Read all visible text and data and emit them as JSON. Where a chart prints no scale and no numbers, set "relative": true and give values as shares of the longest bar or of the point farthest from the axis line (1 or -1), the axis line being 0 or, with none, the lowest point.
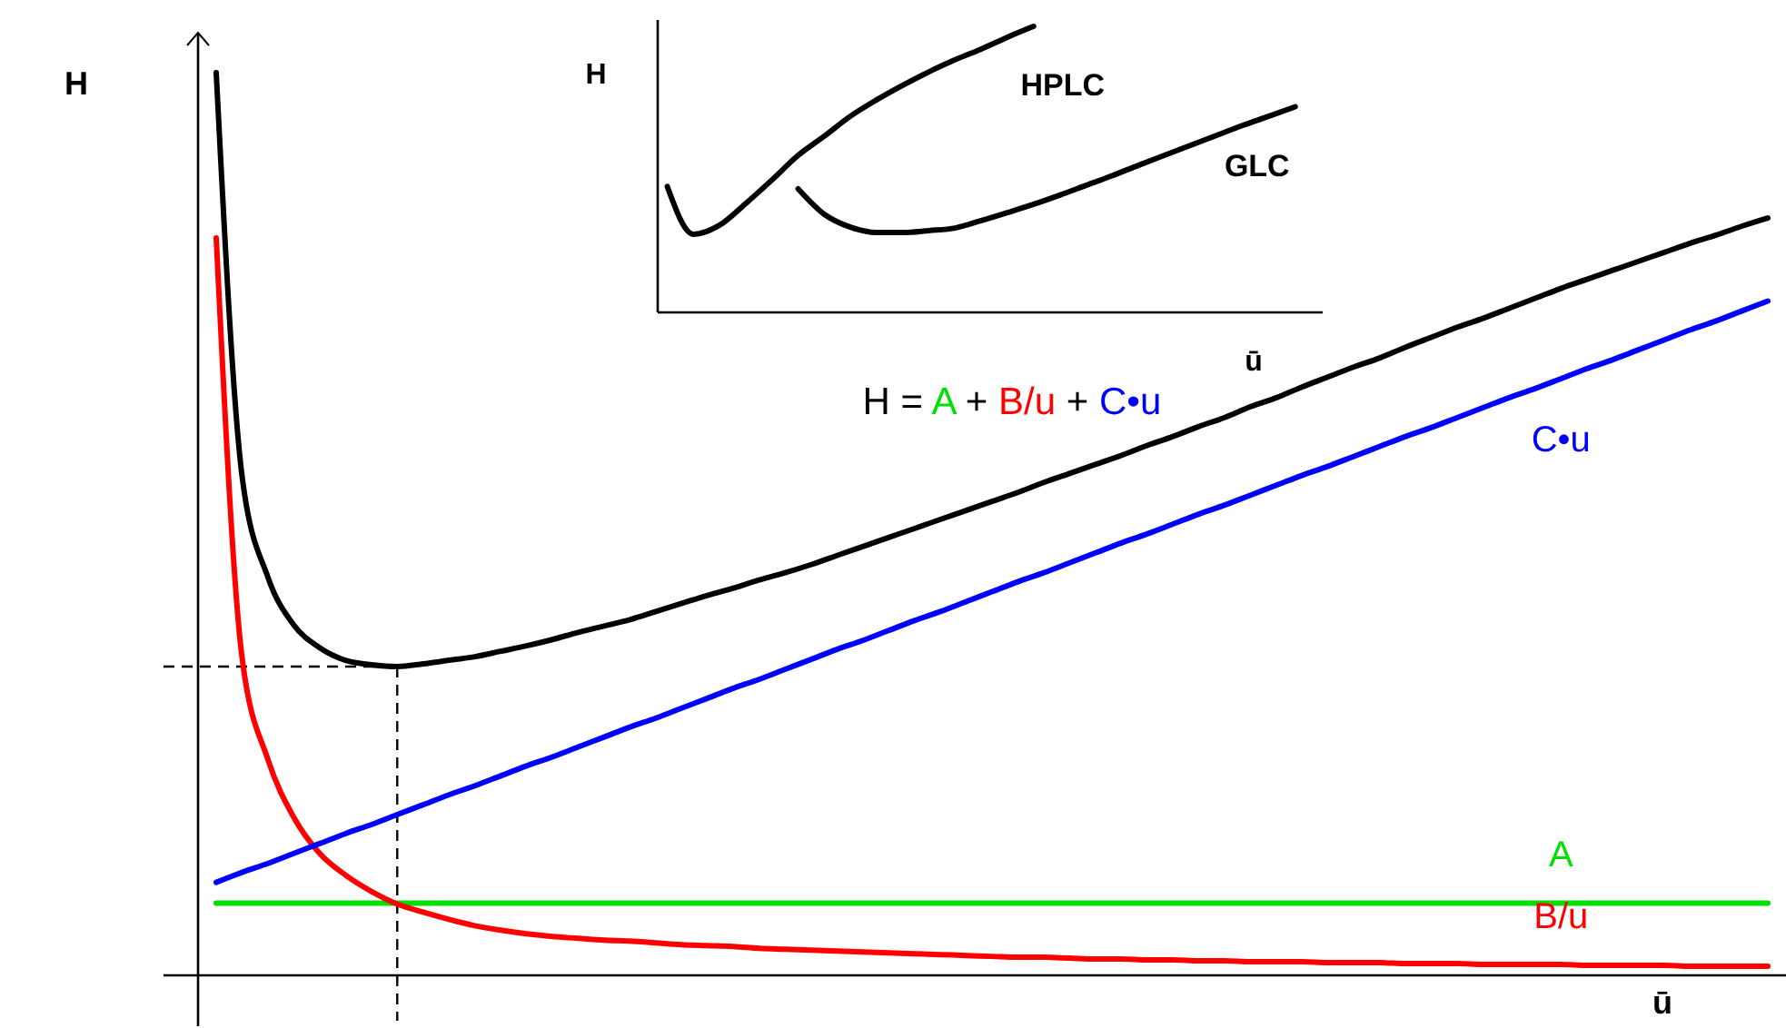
{
  "chart_data": [
    {
      "type": "line",
      "relative": true,
      "ylabel": "H",
      "xlabel": "ū",
      "annotations": [
        "H = A + B/u + C•u"
      ],
      "categories": [
        null,
        null,
        null,
        null,
        null,
        null,
        null,
        null,
        null,
        null,
        null,
        null,
        null,
        null,
        null,
        null,
        null,
        null,
        null,
        null,
        null,
        null,
        null,
        null,
        null,
        null,
        null,
        null,
        null,
        null,
        null,
        null,
        null,
        null,
        null,
        null,
        null,
        null,
        null,
        null,
        null,
        null,
        null,
        null,
        null,
        null,
        null,
        null,
        null,
        null,
        null,
        null,
        null,
        null,
        null,
        null,
        null,
        null,
        null,
        null,
        null
      ],
      "series": [
        {
          "name": "A",
          "color": "#00e000",
          "values": [
            0.08,
            0.08,
            0.08,
            0.08,
            0.08,
            0.08,
            0.08,
            0.08,
            0.08,
            0.08,
            0.08,
            0.08,
            0.08,
            0.08,
            0.08,
            0.08,
            0.08,
            0.08,
            0.08,
            0.08,
            0.08,
            0.08,
            0.08,
            0.08,
            0.08,
            0.08,
            0.08,
            0.08,
            0.08,
            0.08,
            0.08,
            0.08,
            0.08,
            0.08,
            0.08,
            0.08,
            0.08,
            0.08,
            0.08,
            0.08,
            0.08,
            0.08,
            0.08,
            0.08,
            0.08,
            0.08,
            0.08,
            0.08,
            0.08,
            0.08,
            0.08,
            0.08,
            0.08,
            0.08,
            0.08,
            0.08,
            0.08,
            0.08,
            0.08,
            0.08,
            0.08
          ]
        },
        {
          "name": "B/u",
          "color": "#ff0000",
          "values": [
            0.817,
            0.352,
            0.239,
            0.175,
            0.135,
            0.111,
            0.093,
            0.079,
            0.07,
            0.062,
            0.055,
            0.05,
            0.046,
            0.043,
            0.041,
            0.039,
            0.038,
            0.036,
            0.034,
            0.033,
            0.032,
            0.03,
            0.029,
            0.028,
            0.027,
            0.026,
            0.025,
            0.024,
            0.023,
            0.022,
            0.021,
            0.02,
            0.02,
            0.019,
            0.018,
            0.018,
            0.017,
            0.017,
            0.016,
            0.016,
            0.015,
            0.015,
            0.015,
            0.014,
            0.014,
            0.014,
            0.013,
            0.013,
            0.013,
            0.012,
            0.012,
            0.012,
            0.012,
            0.011,
            0.011,
            0.011,
            0.011,
            0.01,
            0.01,
            0.01,
            0.01
          ]
        },
        {
          "name": "C•u",
          "color": "#0000ff",
          "values": [
            0.103,
            0.114,
            0.124,
            0.135,
            0.146,
            0.157,
            0.167,
            0.178,
            0.189,
            0.2,
            0.21,
            0.221,
            0.232,
            0.242,
            0.253,
            0.264,
            0.275,
            0.285,
            0.296,
            0.307,
            0.318,
            0.328,
            0.339,
            0.35,
            0.361,
            0.371,
            0.382,
            0.393,
            0.403,
            0.414,
            0.425,
            0.436,
            0.446,
            0.457,
            0.468,
            0.479,
            0.489,
            0.5,
            0.511,
            0.521,
            0.532,
            0.543,
            0.554,
            0.564,
            0.575,
            0.586,
            0.597,
            0.607,
            0.618,
            0.629,
            0.64,
            0.65,
            0.661,
            0.672,
            0.682,
            0.693,
            0.704,
            0.715,
            0.725,
            0.736,
            0.747
          ]
        },
        {
          "color": "#000000",
          "values": [
            1,
            0.553,
            0.441,
            0.388,
            0.363,
            0.349,
            0.344,
            0.342,
            0.345,
            0.349,
            0.353,
            0.359,
            0.365,
            0.372,
            0.38,
            0.387,
            0.394,
            0.403,
            0.412,
            0.421,
            0.429,
            0.438,
            0.446,
            0.455,
            0.465,
            0.475,
            0.485,
            0.495,
            0.505,
            0.515,
            0.525,
            0.535,
            0.546,
            0.556,
            0.566,
            0.576,
            0.587,
            0.597,
            0.608,
            0.618,
            0.63,
            0.64,
            0.652,
            0.663,
            0.674,
            0.684,
            0.696,
            0.707,
            0.718,
            0.728,
            0.739,
            0.75,
            0.761,
            0.771,
            0.781,
            0.791,
            0.801,
            0.811,
            0.82,
            0.83,
            0.839
          ]
        }
      ],
      "ref_lines": [
        {
          "axis": "y",
          "value": 0.342,
          "line_style": "dashed",
          "color": "#000000"
        }
      ]
    },
    {
      "type": "line",
      "relative": true,
      "ylabel": "H",
      "xlabel": "ū",
      "categories": [
        null,
        null,
        null,
        null,
        null,
        null,
        null,
        null,
        null,
        null,
        null,
        null,
        null,
        null,
        null,
        null,
        null,
        null,
        null,
        null,
        null,
        null,
        null,
        null,
        null
      ],
      "series": [
        {
          "name": "HPLC",
          "color": "#000000",
          "values": [
            0.44,
            0.273,
            0.305,
            0.381,
            0.463,
            0.549,
            0.616,
            0.686,
            0.743,
            0.794,
            0.841,
            0.883,
            0.921,
            0.962,
            1,
            null,
            null,
            null,
            null,
            null,
            null,
            null,
            null,
            null,
            null
          ]
        },
        {
          "name": "GLC",
          "color": "#000000",
          "values": [
            null,
            null,
            null,
            null,
            null,
            0.432,
            0.343,
            0.298,
            0.279,
            0.279,
            0.286,
            0.295,
            0.321,
            0.349,
            0.378,
            0.41,
            0.444,
            0.478,
            0.514,
            0.549,
            0.584,
            0.619,
            0.654,
            0.686,
            0.719
          ]
        }
      ]
    }
  ]
}
